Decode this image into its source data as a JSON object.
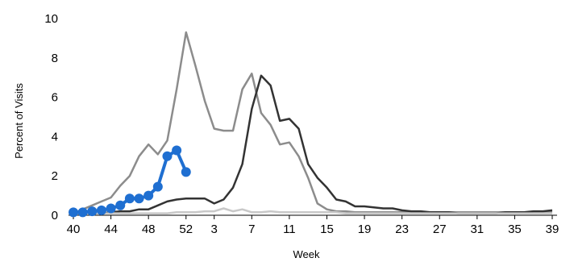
{
  "chart_data": {
    "type": "line",
    "xlabel": "Week",
    "ylabel": "Percent of Visits",
    "ylim": [
      0,
      10
    ],
    "y_ticks": [
      "0",
      "2",
      "4",
      "6",
      "8",
      "10"
    ],
    "x_tick_labels": [
      "40",
      "44",
      "48",
      "52",
      "3",
      "7",
      "11",
      "15",
      "19",
      "23",
      "27",
      "31",
      "35",
      "39"
    ],
    "x_weeks": [
      "40",
      "41",
      "42",
      "43",
      "44",
      "45",
      "46",
      "47",
      "48",
      "49",
      "50",
      "51",
      "52",
      "1",
      "2",
      "3",
      "4",
      "5",
      "6",
      "7",
      "8",
      "9",
      "10",
      "11",
      "12",
      "13",
      "14",
      "15",
      "16",
      "17",
      "18",
      "19",
      "20",
      "21",
      "22",
      "23",
      "24",
      "25",
      "26",
      "27",
      "28",
      "29",
      "30",
      "31",
      "32",
      "33",
      "34",
      "35",
      "36",
      "37",
      "38",
      "39"
    ],
    "grid": false,
    "legend": "none",
    "series": [
      {
        "color": "#8c8c8c",
        "values": [
          0.1,
          0.3,
          0.5,
          0.7,
          0.9,
          1.5,
          2.0,
          3.0,
          3.6,
          3.1,
          3.8,
          6.4,
          9.3,
          7.6,
          5.8,
          4.4,
          4.3,
          4.3,
          6.4,
          7.2,
          5.2,
          4.6,
          3.6,
          3.7,
          3.0,
          1.9,
          0.6,
          0.3,
          0.2,
          0.2,
          0.15,
          0.15,
          0.15,
          0.15,
          0.15,
          0.15,
          0.15,
          0.15,
          0.15,
          0.15,
          0.15,
          0.15,
          0.15,
          0.15,
          0.15,
          0.15,
          0.15,
          0.15,
          0.15,
          0.15,
          0.15,
          0.15
        ]
      },
      {
        "color": "#333333",
        "values": [
          0.1,
          0.1,
          0.1,
          0.1,
          0.15,
          0.2,
          0.2,
          0.3,
          0.3,
          0.5,
          0.7,
          0.8,
          0.85,
          0.85,
          0.85,
          0.6,
          0.8,
          1.4,
          2.6,
          5.4,
          7.1,
          6.6,
          4.8,
          4.9,
          4.4,
          2.6,
          1.9,
          1.4,
          0.8,
          0.7,
          0.45,
          0.45,
          0.4,
          0.35,
          0.35,
          0.25,
          0.2,
          0.2,
          0.15,
          0.15,
          0.15,
          0.1,
          0.1,
          0.1,
          0.1,
          0.1,
          0.15,
          0.15,
          0.15,
          0.2,
          0.2,
          0.25
        ]
      },
      {
        "color": "#c8c8c8",
        "values": [
          0.1,
          0.1,
          0.1,
          0.1,
          0.1,
          0.1,
          0.1,
          0.1,
          0.1,
          0.1,
          0.1,
          0.15,
          0.15,
          0.15,
          0.2,
          0.2,
          0.35,
          0.2,
          0.3,
          0.15,
          0.15,
          0.2,
          0.15,
          0.15,
          0.15,
          0.15,
          0.15,
          0.15,
          0.15,
          0.1,
          0.1,
          0.1,
          0.1,
          0.1,
          0.1,
          0.1,
          0.1,
          0.1,
          0.1,
          0.1,
          0.1,
          0.1,
          0.1,
          0.1,
          0.1,
          0.1,
          0.1,
          0.1,
          0.1,
          0.1,
          0.1,
          0.1
        ]
      },
      {
        "color": "#1f6fd1",
        "markers": true,
        "values": [
          0.15,
          0.15,
          0.2,
          0.25,
          0.35,
          0.5,
          0.85,
          0.85,
          1.0,
          1.45,
          3.0,
          3.3,
          2.2
        ]
      }
    ]
  }
}
